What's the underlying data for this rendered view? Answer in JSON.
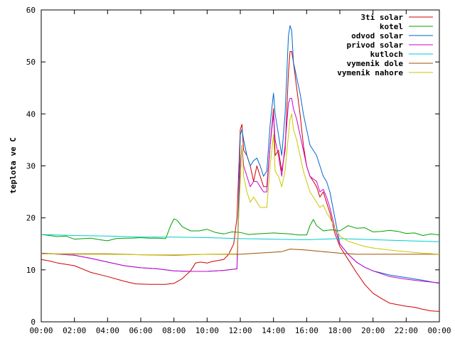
{
  "chart_data": {
    "type": "line",
    "ylabel": "teplota ve C",
    "xlim": [
      0,
      24
    ],
    "ylim": [
      0,
      60
    ],
    "x_ticks": [
      "00:00",
      "02:00",
      "04:00",
      "06:00",
      "08:00",
      "10:00",
      "12:00",
      "14:00",
      "16:00",
      "18:00",
      "20:00",
      "22:00",
      "00:00"
    ],
    "y_ticks": [
      0,
      10,
      20,
      30,
      40,
      50,
      60
    ],
    "grid": false,
    "legend_position": "top-right",
    "series": [
      {
        "name": "3ti solar",
        "color": "#cc0000",
        "points": [
          [
            0,
            12
          ],
          [
            0.5,
            11.7
          ],
          [
            1,
            11.3
          ],
          [
            2,
            10.8
          ],
          [
            3,
            9.5
          ],
          [
            4,
            8.7
          ],
          [
            5,
            7.8
          ],
          [
            5.7,
            7.3
          ],
          [
            6.5,
            7.2
          ],
          [
            7,
            7.2
          ],
          [
            7.5,
            7.2
          ],
          [
            8,
            7.4
          ],
          [
            8.5,
            8.3
          ],
          [
            9,
            9.8
          ],
          [
            9.3,
            11.3
          ],
          [
            9.6,
            11.5
          ],
          [
            10,
            11.3
          ],
          [
            10.3,
            11.6
          ],
          [
            11,
            12
          ],
          [
            11.3,
            13
          ],
          [
            11.6,
            15
          ],
          [
            11.8,
            20
          ],
          [
            12,
            37
          ],
          [
            12.1,
            38
          ],
          [
            12.2,
            33
          ],
          [
            12.4,
            32
          ],
          [
            12.6,
            30
          ],
          [
            12.8,
            27
          ],
          [
            13,
            30
          ],
          [
            13.2,
            28
          ],
          [
            13.4,
            26
          ],
          [
            13.6,
            26
          ],
          [
            13.8,
            34
          ],
          [
            14,
            41
          ],
          [
            14.1,
            32
          ],
          [
            14.3,
            33
          ],
          [
            14.5,
            29
          ],
          [
            14.7,
            33
          ],
          [
            14.9,
            48
          ],
          [
            15,
            52
          ],
          [
            15.1,
            52
          ],
          [
            15.2,
            50
          ],
          [
            15.4,
            45
          ],
          [
            15.6,
            40
          ],
          [
            15.8,
            34
          ],
          [
            16,
            30
          ],
          [
            16.2,
            28
          ],
          [
            16.4,
            27
          ],
          [
            16.6,
            26
          ],
          [
            16.8,
            24
          ],
          [
            17,
            25
          ],
          [
            17.2,
            23
          ],
          [
            17.4,
            21
          ],
          [
            17.7,
            17
          ],
          [
            18,
            14.5
          ],
          [
            18.5,
            12
          ],
          [
            19,
            9.5
          ],
          [
            19.5,
            7.2
          ],
          [
            20,
            5.5
          ],
          [
            20.5,
            4.5
          ],
          [
            21,
            3.6
          ],
          [
            21.5,
            3.3
          ],
          [
            22,
            3
          ],
          [
            22.5,
            2.8
          ],
          [
            23,
            2.4
          ],
          [
            23.5,
            2.1
          ],
          [
            24,
            2
          ]
        ]
      },
      {
        "name": "kotel",
        "color": "#00a000",
        "points": [
          [
            0,
            16.8
          ],
          [
            0.5,
            16.6
          ],
          [
            1,
            16.4
          ],
          [
            1.5,
            16.5
          ],
          [
            2,
            15.9
          ],
          [
            2.5,
            16
          ],
          [
            3,
            16.1
          ],
          [
            3.5,
            15.8
          ],
          [
            4,
            15.6
          ],
          [
            4.5,
            16
          ],
          [
            5,
            16.1
          ],
          [
            5.5,
            16.1
          ],
          [
            6,
            16.2
          ],
          [
            6.5,
            16.1
          ],
          [
            7,
            16.1
          ],
          [
            7.5,
            16
          ],
          [
            7.8,
            18.5
          ],
          [
            8,
            19.8
          ],
          [
            8.2,
            19.5
          ],
          [
            8.5,
            18.3
          ],
          [
            9,
            17.5
          ],
          [
            9.5,
            17.5
          ],
          [
            10,
            17.8
          ],
          [
            10.5,
            17.2
          ],
          [
            11,
            16.9
          ],
          [
            11.5,
            17.3
          ],
          [
            12,
            17.2
          ],
          [
            12.5,
            16.8
          ],
          [
            13,
            16.9
          ],
          [
            13.5,
            17
          ],
          [
            14,
            17.1
          ],
          [
            14.5,
            17
          ],
          [
            15,
            16.9
          ],
          [
            15.5,
            16.7
          ],
          [
            16,
            16.7
          ],
          [
            16.2,
            18.5
          ],
          [
            16.4,
            19.7
          ],
          [
            16.6,
            18.5
          ],
          [
            17,
            17.5
          ],
          [
            17.5,
            17.7
          ],
          [
            18,
            17.5
          ],
          [
            18.5,
            18.5
          ],
          [
            19,
            18
          ],
          [
            19.5,
            18.1
          ],
          [
            20,
            17.3
          ],
          [
            20.5,
            17.4
          ],
          [
            21,
            17.6
          ],
          [
            21.5,
            17.4
          ],
          [
            22,
            17
          ],
          [
            22.5,
            17.1
          ],
          [
            23,
            16.6
          ],
          [
            23.5,
            16.9
          ],
          [
            24,
            16.7
          ]
        ]
      },
      {
        "name": "odvod solar",
        "color": "#0066cc",
        "points": [
          [
            0,
            13.2
          ],
          [
            2,
            12.8
          ],
          [
            3,
            12.2
          ],
          [
            4,
            11.5
          ],
          [
            5,
            10.8
          ],
          [
            6,
            10.4
          ],
          [
            7,
            10.2
          ],
          [
            8,
            9.8
          ],
          [
            9,
            9.7
          ],
          [
            10,
            9.7
          ],
          [
            11,
            9.9
          ],
          [
            11.8,
            10.2
          ],
          [
            12,
            36
          ],
          [
            12.1,
            37
          ],
          [
            12.2,
            35
          ],
          [
            12.4,
            32
          ],
          [
            12.6,
            30
          ],
          [
            12.8,
            31
          ],
          [
            13,
            31.5
          ],
          [
            13.2,
            30
          ],
          [
            13.4,
            28
          ],
          [
            13.6,
            29
          ],
          [
            13.8,
            38
          ],
          [
            14,
            44
          ],
          [
            14.1,
            40
          ],
          [
            14.3,
            36
          ],
          [
            14.5,
            32
          ],
          [
            14.7,
            40
          ],
          [
            14.9,
            55
          ],
          [
            15,
            57
          ],
          [
            15.1,
            56
          ],
          [
            15.2,
            50
          ],
          [
            15.4,
            47
          ],
          [
            15.6,
            44
          ],
          [
            15.8,
            40
          ],
          [
            16,
            37
          ],
          [
            16.2,
            34
          ],
          [
            16.4,
            33
          ],
          [
            16.6,
            32
          ],
          [
            16.8,
            30
          ],
          [
            17,
            28
          ],
          [
            17.2,
            27
          ],
          [
            17.4,
            25
          ],
          [
            17.7,
            20
          ],
          [
            18,
            15
          ],
          [
            18.5,
            13
          ],
          [
            19,
            11.5
          ],
          [
            19.5,
            10.5
          ],
          [
            20,
            9.8
          ],
          [
            21,
            9
          ],
          [
            22,
            8.5
          ],
          [
            23,
            8
          ],
          [
            24,
            7.4
          ]
        ]
      },
      {
        "name": "privod solar",
        "color": "#cc00cc",
        "points": [
          [
            0,
            13.2
          ],
          [
            2,
            12.8
          ],
          [
            3,
            12.2
          ],
          [
            4,
            11.5
          ],
          [
            5,
            10.8
          ],
          [
            6,
            10.4
          ],
          [
            7,
            10.2
          ],
          [
            8,
            9.8
          ],
          [
            9,
            9.7
          ],
          [
            10,
            9.7
          ],
          [
            11,
            9.9
          ],
          [
            11.8,
            10.2
          ],
          [
            12,
            30
          ],
          [
            12.1,
            34
          ],
          [
            12.2,
            30
          ],
          [
            12.4,
            28
          ],
          [
            12.6,
            26
          ],
          [
            12.8,
            27
          ],
          [
            13,
            27
          ],
          [
            13.2,
            26
          ],
          [
            13.4,
            25
          ],
          [
            13.6,
            25
          ],
          [
            13.8,
            34
          ],
          [
            14,
            40
          ],
          [
            14.1,
            35
          ],
          [
            14.3,
            32
          ],
          [
            14.5,
            28
          ],
          [
            14.7,
            34
          ],
          [
            14.9,
            42
          ],
          [
            15,
            43
          ],
          [
            15.1,
            43
          ],
          [
            15.2,
            41
          ],
          [
            15.4,
            39
          ],
          [
            15.6,
            36
          ],
          [
            15.8,
            33
          ],
          [
            16,
            30
          ],
          [
            16.2,
            28
          ],
          [
            16.4,
            27.5
          ],
          [
            16.6,
            27
          ],
          [
            16.8,
            25
          ],
          [
            17,
            25.5
          ],
          [
            17.2,
            24
          ],
          [
            17.4,
            22
          ],
          [
            17.7,
            18
          ],
          [
            18,
            15
          ],
          [
            18.5,
            13
          ],
          [
            19,
            11.5
          ],
          [
            19.5,
            10.5
          ],
          [
            20,
            9.8
          ],
          [
            21,
            8.7
          ],
          [
            22,
            8.2
          ],
          [
            23,
            7.8
          ],
          [
            24,
            7.5
          ]
        ]
      },
      {
        "name": "kutloch",
        "color": "#00cccc",
        "points": [
          [
            0,
            16.8
          ],
          [
            2,
            16.6
          ],
          [
            4,
            16.5
          ],
          [
            6,
            16.3
          ],
          [
            8,
            16.3
          ],
          [
            10,
            16.2
          ],
          [
            12,
            16
          ],
          [
            14,
            15.9
          ],
          [
            16,
            15.8
          ],
          [
            18,
            16
          ],
          [
            20,
            15.8
          ],
          [
            22,
            15.6
          ],
          [
            24,
            15.4
          ]
        ]
      },
      {
        "name": "vymenik dole",
        "color": "#a05000",
        "points": [
          [
            0,
            13.1
          ],
          [
            2,
            13.1
          ],
          [
            4,
            13.1
          ],
          [
            6,
            12.9
          ],
          [
            8,
            12.8
          ],
          [
            10,
            13
          ],
          [
            12,
            13
          ],
          [
            13,
            13.2
          ],
          [
            14,
            13.4
          ],
          [
            14.5,
            13.5
          ],
          [
            15,
            14
          ],
          [
            15.5,
            13.9
          ],
          [
            16,
            13.8
          ],
          [
            17,
            13.5
          ],
          [
            18,
            13.2
          ],
          [
            19,
            13
          ],
          [
            20,
            13
          ],
          [
            22,
            13
          ],
          [
            24,
            13
          ]
        ]
      },
      {
        "name": "vymenik nahore",
        "color": "#c8c800",
        "points": [
          [
            0,
            13.1
          ],
          [
            2,
            13
          ],
          [
            4,
            13
          ],
          [
            6,
            12.9
          ],
          [
            8,
            12.9
          ],
          [
            10,
            13
          ],
          [
            11.8,
            13.1
          ],
          [
            12,
            27
          ],
          [
            12.1,
            34
          ],
          [
            12.2,
            28
          ],
          [
            12.4,
            25
          ],
          [
            12.6,
            23
          ],
          [
            12.8,
            24
          ],
          [
            13,
            23
          ],
          [
            13.2,
            22
          ],
          [
            13.4,
            22
          ],
          [
            13.6,
            22
          ],
          [
            13.8,
            30
          ],
          [
            14,
            36
          ],
          [
            14.1,
            29
          ],
          [
            14.3,
            28
          ],
          [
            14.5,
            26
          ],
          [
            14.7,
            29
          ],
          [
            14.9,
            36
          ],
          [
            15,
            39
          ],
          [
            15.1,
            40
          ],
          [
            15.2,
            37
          ],
          [
            15.4,
            35
          ],
          [
            15.6,
            32
          ],
          [
            15.8,
            29
          ],
          [
            16,
            27
          ],
          [
            16.2,
            25
          ],
          [
            16.4,
            24
          ],
          [
            16.6,
            23
          ],
          [
            16.8,
            22
          ],
          [
            17,
            22.5
          ],
          [
            17.2,
            21
          ],
          [
            17.4,
            20
          ],
          [
            17.7,
            18
          ],
          [
            18,
            16.5
          ],
          [
            18.5,
            15.5
          ],
          [
            19,
            15
          ],
          [
            19.5,
            14.5
          ],
          [
            20,
            14.2
          ],
          [
            21,
            13.8
          ],
          [
            22,
            13.5
          ],
          [
            23,
            13.2
          ],
          [
            24,
            13
          ]
        ]
      }
    ]
  }
}
